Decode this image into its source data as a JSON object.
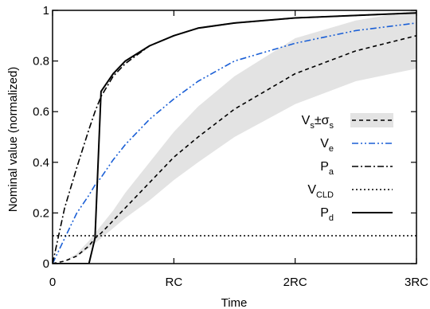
{
  "chart_data": {
    "type": "line",
    "xlabel": "Time",
    "ylabel": "Nominal value (normalized)",
    "xlim": [
      0,
      3
    ],
    "ylim": [
      0,
      1
    ],
    "x_ticks": [
      {
        "value": 0,
        "label": "0"
      },
      {
        "value": 1,
        "label": "RC"
      },
      {
        "value": 2,
        "label": "2RC"
      },
      {
        "value": 3,
        "label": "3RC"
      }
    ],
    "y_ticks": [
      {
        "value": 0,
        "label": "0"
      },
      {
        "value": 0.2,
        "label": "0.2"
      },
      {
        "value": 0.4,
        "label": "0.4"
      },
      {
        "value": 0.6,
        "label": "0.6"
      },
      {
        "value": 0.8,
        "label": "0.8"
      },
      {
        "value": 1,
        "label": "1"
      }
    ],
    "grid": false,
    "legend_position": "right-middle",
    "x": [
      0,
      0.1,
      0.2,
      0.3,
      0.35,
      0.4,
      0.5,
      0.6,
      0.8,
      1.0,
      1.2,
      1.5,
      2.0,
      2.5,
      3.0
    ],
    "series": [
      {
        "key": "vs",
        "legend": {
          "main": "V",
          "sub": "s",
          "mid": "±σ",
          "sub2": "s"
        },
        "style": "dashed",
        "color": "#000000",
        "band_color": "#e3e3e3",
        "values": [
          0,
          0.01,
          0.03,
          0.07,
          0.1,
          0.12,
          0.17,
          0.22,
          0.32,
          0.42,
          0.5,
          0.61,
          0.75,
          0.84,
          0.9
        ],
        "band_lower": [
          0,
          0.01,
          0.03,
          0.06,
          0.08,
          0.1,
          0.14,
          0.18,
          0.25,
          0.33,
          0.4,
          0.5,
          0.63,
          0.72,
          0.77
        ],
        "band_upper": [
          0,
          0.01,
          0.04,
          0.09,
          0.12,
          0.15,
          0.21,
          0.28,
          0.4,
          0.52,
          0.62,
          0.74,
          0.89,
          0.96,
          1.0
        ]
      },
      {
        "key": "ve",
        "legend": {
          "main": "V",
          "sub": "e"
        },
        "style": "dashdotdot",
        "color": "#1a5fd6",
        "values": [
          0,
          0.1,
          0.2,
          0.27,
          0.31,
          0.34,
          0.41,
          0.47,
          0.57,
          0.65,
          0.72,
          0.8,
          0.87,
          0.92,
          0.95
        ]
      },
      {
        "key": "pa",
        "legend": {
          "main": "P",
          "sub": "a"
        },
        "style": "dashdot",
        "color": "#000000",
        "values": [
          0,
          0.22,
          0.38,
          0.53,
          0.6,
          0.66,
          0.74,
          0.79,
          0.86,
          0.9,
          0.93,
          0.95,
          0.97,
          0.98,
          0.99
        ]
      },
      {
        "key": "vcld",
        "legend": {
          "main": "V",
          "sub": "CLD"
        },
        "style": "dotted",
        "color": "#000000",
        "values": [
          0.11,
          0.11,
          0.11,
          0.11,
          0.11,
          0.11,
          0.11,
          0.11,
          0.11,
          0.11,
          0.11,
          0.11,
          0.11,
          0.11,
          0.11
        ]
      },
      {
        "key": "pd",
        "legend": {
          "main": "P",
          "sub": "d"
        },
        "style": "solid",
        "color": "#000000",
        "values": [
          0,
          0,
          0,
          0,
          0.1,
          0.68,
          0.75,
          0.8,
          0.86,
          0.9,
          0.93,
          0.95,
          0.97,
          0.98,
          0.99
        ]
      }
    ]
  }
}
